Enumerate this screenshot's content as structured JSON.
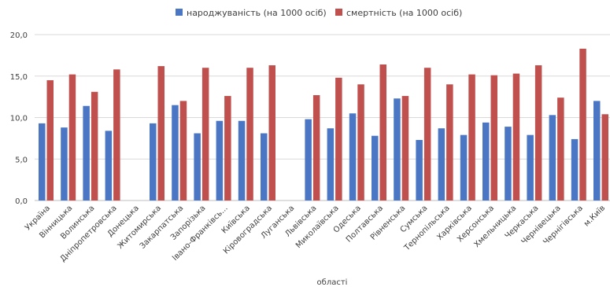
{
  "chart_data": {
    "type": "bar",
    "title": "",
    "xlabel": "області",
    "ylabel": "",
    "ylim": [
      0,
      20
    ],
    "yticks": [
      "0,0",
      "5,0",
      "10,0",
      "15,0",
      "20,0"
    ],
    "grid": true,
    "legend_position": "top",
    "categories": [
      "Україна",
      "Вінницька",
      "Волинська",
      "Дніпропетровська",
      "Донецька",
      "Житомирська",
      "Закарпатська",
      "Запорізька",
      "Івано-Франківсь...",
      "Київська",
      "Кіровоградська",
      "Луганська",
      "Львівська",
      "Миколаївська",
      "Одеська",
      "Полтавська",
      "Рівненська",
      "Сумська",
      "Тернопільська",
      "Харківська",
      "Херсонська",
      "Хмельницька",
      "Черкаська",
      "Чернівецька",
      "Чернігівська",
      "м.Київ"
    ],
    "series": [
      {
        "name": "народжуваність (на 1000 осіб)",
        "color": "#4a76c4",
        "values": [
          9.3,
          8.8,
          11.4,
          8.4,
          null,
          9.3,
          11.5,
          8.1,
          9.6,
          9.6,
          8.1,
          null,
          9.8,
          8.7,
          10.5,
          7.8,
          12.3,
          7.3,
          8.7,
          7.9,
          9.4,
          8.9,
          7.9,
          10.3,
          7.4,
          12.0
        ]
      },
      {
        "name": "смертність (на 1000 осіб)",
        "color": "#c0504d",
        "values": [
          14.5,
          15.2,
          13.1,
          15.8,
          null,
          16.2,
          12.0,
          16.0,
          12.6,
          16.0,
          16.3,
          null,
          12.7,
          14.8,
          14.0,
          16.4,
          12.6,
          16.0,
          14.0,
          15.2,
          15.1,
          15.3,
          16.3,
          12.4,
          18.3,
          10.4
        ]
      }
    ]
  }
}
